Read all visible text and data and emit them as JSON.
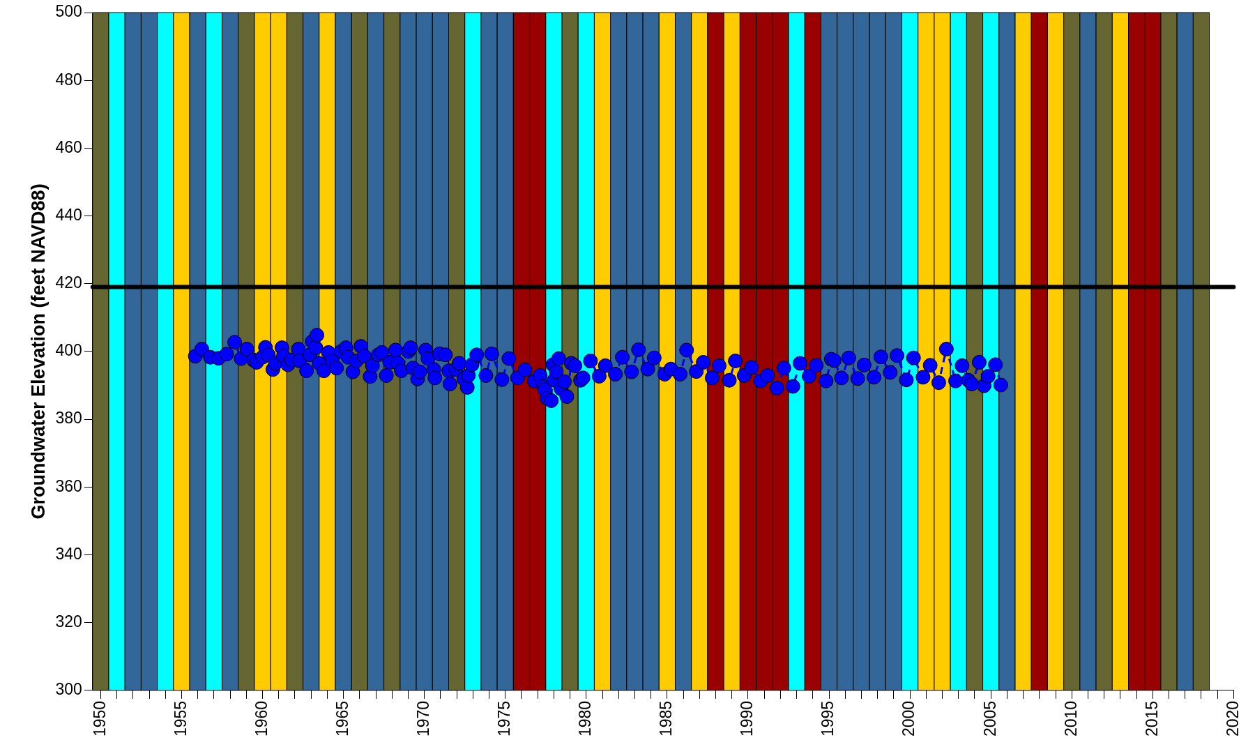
{
  "chart_data": {
    "type": "line",
    "ylabel": "Groundwater Elevation (feet NAVD88)",
    "xlim": [
      1949.5,
      2020
    ],
    "xticks": [
      1950,
      {
        "value": 1951,
        "label": null
      },
      {
        "value": 1952,
        "label": null
      },
      {
        "value": 1953,
        "label": null
      },
      {
        "value": 1954,
        "label": null
      },
      1955,
      {
        "value": 1956,
        "label": null
      },
      {
        "value": 1957,
        "label": null
      },
      {
        "value": 1958,
        "label": null
      },
      {
        "value": 1959,
        "label": null
      },
      1960,
      {
        "value": 1961,
        "label": null
      },
      {
        "value": 1962,
        "label": null
      },
      {
        "value": 1963,
        "label": null
      },
      {
        "value": 1964,
        "label": null
      },
      1965,
      {
        "value": 1966,
        "label": null
      },
      {
        "value": 1967,
        "label": null
      },
      {
        "value": 1968,
        "label": null
      },
      {
        "value": 1969,
        "label": null
      },
      1970,
      {
        "value": 1971,
        "label": null
      },
      {
        "value": 1972,
        "label": null
      },
      {
        "value": 1973,
        "label": null
      },
      {
        "value": 1974,
        "label": null
      },
      1975,
      {
        "value": 1976,
        "label": null
      },
      {
        "value": 1977,
        "label": null
      },
      {
        "value": 1978,
        "label": null
      },
      {
        "value": 1979,
        "label": null
      },
      1980,
      {
        "value": 1981,
        "label": null
      },
      {
        "value": 1982,
        "label": null
      },
      {
        "value": 1983,
        "label": null
      },
      {
        "value": 1984,
        "label": null
      },
      1985,
      {
        "value": 1986,
        "label": null
      },
      {
        "value": 1987,
        "label": null
      },
      {
        "value": 1988,
        "label": null
      },
      {
        "value": 1989,
        "label": null
      },
      1990,
      {
        "value": 1991,
        "label": null
      },
      {
        "value": 1992,
        "label": null
      },
      {
        "value": 1993,
        "label": null
      },
      {
        "value": 1994,
        "label": null
      },
      1995,
      {
        "value": 1996,
        "label": null
      },
      {
        "value": 1997,
        "label": null
      },
      {
        "value": 1998,
        "label": null
      },
      {
        "value": 1999,
        "label": null
      },
      2000,
      {
        "value": 2001,
        "label": null
      },
      {
        "value": 2002,
        "label": null
      },
      {
        "value": 2003,
        "label": null
      },
      {
        "value": 2004,
        "label": null
      },
      2005,
      {
        "value": 2006,
        "label": null
      },
      {
        "value": 2007,
        "label": null
      },
      {
        "value": 2008,
        "label": null
      },
      {
        "value": 2009,
        "label": null
      },
      2010,
      {
        "value": 2011,
        "label": null
      },
      {
        "value": 2012,
        "label": null
      },
      {
        "value": 2013,
        "label": null
      },
      {
        "value": 2014,
        "label": null
      },
      2015,
      {
        "value": 2016,
        "label": null
      },
      {
        "value": 2017,
        "label": null
      },
      {
        "value": 2018,
        "label": null
      },
      {
        "value": 2019,
        "label": null
      },
      2020
    ],
    "ylim": [
      300,
      500
    ],
    "yticks": [
      300,
      320,
      340,
      360,
      380,
      400,
      420,
      440,
      460,
      480,
      500
    ],
    "grid": false,
    "legend": false,
    "x": [
      1955.85,
      1956.25,
      1956.78,
      1957.28,
      1957.78,
      1958.28,
      1958.68,
      1959.03,
      1959.43,
      1959.64,
      1960.0,
      1960.18,
      1960.36,
      1960.64,
      1960.8,
      1961.2,
      1961.29,
      1961.57,
      1961.79,
      1962.22,
      1962.29,
      1962.72,
      1962.93,
      1963.07,
      1963.29,
      1963.36,
      1963.5,
      1963.79,
      1964.07,
      1964.29,
      1964.57,
      1964.86,
      1965.15,
      1965.29,
      1965.58,
      1965.79,
      1966.08,
      1966.29,
      1966.65,
      1966.79,
      1967.15,
      1967.37,
      1967.65,
      1967.86,
      1968.22,
      1968.37,
      1968.58,
      1969.01,
      1969.15,
      1969.29,
      1969.58,
      1969.72,
      1970.08,
      1970.22,
      1970.58,
      1970.65,
      1970.94,
      1971.3,
      1971.51,
      1971.58,
      1971.94,
      1972.15,
      1972.44,
      1972.65,
      1972.72,
      1972.94,
      1973.23,
      1973.8,
      1974.16,
      1974.79,
      1975.22,
      1975.76,
      1976.22,
      1976.79,
      1977.15,
      1977.37,
      1977.44,
      1977.58,
      1977.84,
      1977.94,
      1978.01,
      1978.15,
      1978.3,
      1978.44,
      1978.65,
      1978.8,
      1979.08,
      1979.3,
      1979.65,
      1979.8,
      1980.26,
      1980.8,
      1981.18,
      1981.8,
      1982.23,
      1982.8,
      1983.23,
      1983.8,
      1984.2,
      1984.85,
      1985.23,
      1985.8,
      1986.2,
      1986.8,
      1987.23,
      1987.78,
      1988.21,
      1988.84,
      1989.21,
      1989.76,
      1990.21,
      1990.77,
      1991.2,
      1991.78,
      1992.21,
      1992.77,
      1993.21,
      1993.77,
      1994.21,
      1994.82,
      1995.14,
      1995.32,
      1995.77,
      1996.22,
      1996.77,
      1997.17,
      1997.78,
      1998.2,
      1998.78,
      1999.2,
      1999.78,
      2000.22,
      2000.81,
      2001.25,
      2001.78,
      2002.25,
      2002.82,
      2003.22,
      2003.61,
      2003.82,
      2004.28,
      2004.58,
      2004.83,
      2005.28,
      2005.61
    ],
    "series": [
      {
        "color": "#0000ff",
        "line_style": "dashed",
        "marker": "circle",
        "values": [
          398.6,
          400.7,
          398.3,
          398.0,
          399.2,
          402.7,
          397.9,
          400.7,
          397.5,
          396.8,
          398.3,
          401.2,
          399.0,
          394.7,
          396.5,
          401.1,
          398.6,
          396.1,
          397.5,
          400.7,
          397.2,
          394.3,
          399.0,
          402.9,
          401.1,
          404.8,
          396.5,
          394.3,
          399.7,
          397.2,
          395.1,
          400.0,
          401.1,
          398.3,
          394.0,
          397.2,
          401.5,
          398.6,
          392.6,
          395.8,
          399.0,
          399.7,
          392.9,
          396.8,
          400.4,
          396.5,
          394.3,
          400.0,
          401.1,
          395.1,
          391.9,
          394.0,
          400.4,
          397.9,
          394.7,
          392.2,
          399.3,
          399.0,
          394.3,
          390.4,
          394.7,
          396.5,
          391.9,
          389.4,
          392.9,
          396.1,
          399.0,
          392.9,
          399.3,
          391.7,
          397.9,
          392.2,
          394.6,
          391.3,
          392.9,
          389.7,
          388.7,
          386.2,
          385.5,
          396.1,
          391.5,
          394.0,
          397.9,
          389.0,
          391.1,
          386.7,
          396.5,
          395.8,
          391.5,
          392.2,
          397.2,
          392.7,
          395.8,
          393.3,
          398.3,
          394.0,
          400.5,
          394.8,
          398.1,
          393.3,
          394.8,
          393.3,
          400.4,
          394.1,
          396.8,
          392.2,
          395.8,
          391.5,
          397.2,
          392.9,
          395.3,
          391.3,
          392.9,
          389.2,
          395.1,
          389.7,
          396.5,
          392.7,
          395.9,
          391.3,
          397.7,
          397.3,
          392.2,
          398.1,
          392.0,
          396.0,
          392.4,
          398.4,
          393.8,
          398.8,
          391.6,
          398.1,
          392.4,
          395.9,
          390.8,
          400.7,
          391.3,
          395.8,
          391.5,
          390.4,
          396.8,
          389.9,
          392.7,
          396.1,
          390.1
        ]
      }
    ],
    "ref_lines": [
      {
        "axis": "y",
        "value": 419,
        "color": "#000000"
      }
    ],
    "bands": [
      {
        "axis": "x",
        "from": 1949.5,
        "to": 1950.5,
        "color": "#666633"
      },
      {
        "axis": "x",
        "from": 1950.5,
        "to": 1951.5,
        "color": "#00ffff"
      },
      {
        "axis": "x",
        "from": 1951.5,
        "to": 1952.5,
        "color": "#336699"
      },
      {
        "axis": "x",
        "from": 1952.5,
        "to": 1953.5,
        "color": "#336699"
      },
      {
        "axis": "x",
        "from": 1953.5,
        "to": 1954.5,
        "color": "#00ffff"
      },
      {
        "axis": "x",
        "from": 1954.5,
        "to": 1955.5,
        "color": "#ffcc00"
      },
      {
        "axis": "x",
        "from": 1955.5,
        "to": 1956.5,
        "color": "#336699"
      },
      {
        "axis": "x",
        "from": 1956.5,
        "to": 1957.5,
        "color": "#00ffff"
      },
      {
        "axis": "x",
        "from": 1957.5,
        "to": 1958.5,
        "color": "#336699"
      },
      {
        "axis": "x",
        "from": 1958.5,
        "to": 1959.5,
        "color": "#666633"
      },
      {
        "axis": "x",
        "from": 1959.5,
        "to": 1960.5,
        "color": "#ffcc00"
      },
      {
        "axis": "x",
        "from": 1960.5,
        "to": 1961.5,
        "color": "#ffcc00"
      },
      {
        "axis": "x",
        "from": 1961.5,
        "to": 1962.5,
        "color": "#666633"
      },
      {
        "axis": "x",
        "from": 1962.5,
        "to": 1963.5,
        "color": "#336699"
      },
      {
        "axis": "x",
        "from": 1963.5,
        "to": 1964.5,
        "color": "#ffcc00"
      },
      {
        "axis": "x",
        "from": 1964.5,
        "to": 1965.5,
        "color": "#336699"
      },
      {
        "axis": "x",
        "from": 1965.5,
        "to": 1966.5,
        "color": "#666633"
      },
      {
        "axis": "x",
        "from": 1966.5,
        "to": 1967.5,
        "color": "#336699"
      },
      {
        "axis": "x",
        "from": 1967.5,
        "to": 1968.5,
        "color": "#666633"
      },
      {
        "axis": "x",
        "from": 1968.5,
        "to": 1969.5,
        "color": "#336699"
      },
      {
        "axis": "x",
        "from": 1969.5,
        "to": 1970.5,
        "color": "#336699"
      },
      {
        "axis": "x",
        "from": 1970.5,
        "to": 1971.5,
        "color": "#336699"
      },
      {
        "axis": "x",
        "from": 1971.5,
        "to": 1972.5,
        "color": "#666633"
      },
      {
        "axis": "x",
        "from": 1972.5,
        "to": 1973.5,
        "color": "#00ffff"
      },
      {
        "axis": "x",
        "from": 1973.5,
        "to": 1974.5,
        "color": "#336699"
      },
      {
        "axis": "x",
        "from": 1974.5,
        "to": 1975.5,
        "color": "#336699"
      },
      {
        "axis": "x",
        "from": 1975.5,
        "to": 1976.5,
        "color": "#990000"
      },
      {
        "axis": "x",
        "from": 1976.5,
        "to": 1977.5,
        "color": "#990000"
      },
      {
        "axis": "x",
        "from": 1977.5,
        "to": 1978.5,
        "color": "#00ffff"
      },
      {
        "axis": "x",
        "from": 1978.5,
        "to": 1979.5,
        "color": "#666633"
      },
      {
        "axis": "x",
        "from": 1979.5,
        "to": 1980.5,
        "color": "#00ffff"
      },
      {
        "axis": "x",
        "from": 1980.5,
        "to": 1981.5,
        "color": "#ffcc00"
      },
      {
        "axis": "x",
        "from": 1981.5,
        "to": 1982.5,
        "color": "#336699"
      },
      {
        "axis": "x",
        "from": 1982.5,
        "to": 1983.5,
        "color": "#336699"
      },
      {
        "axis": "x",
        "from": 1983.5,
        "to": 1984.5,
        "color": "#336699"
      },
      {
        "axis": "x",
        "from": 1984.5,
        "to": 1985.5,
        "color": "#ffcc00"
      },
      {
        "axis": "x",
        "from": 1985.5,
        "to": 1986.5,
        "color": "#336699"
      },
      {
        "axis": "x",
        "from": 1986.5,
        "to": 1987.5,
        "color": "#ffcc00"
      },
      {
        "axis": "x",
        "from": 1987.5,
        "to": 1988.5,
        "color": "#990000"
      },
      {
        "axis": "x",
        "from": 1988.5,
        "to": 1989.5,
        "color": "#ffcc00"
      },
      {
        "axis": "x",
        "from": 1989.5,
        "to": 1990.5,
        "color": "#990000"
      },
      {
        "axis": "x",
        "from": 1990.5,
        "to": 1991.5,
        "color": "#990000"
      },
      {
        "axis": "x",
        "from": 1991.5,
        "to": 1992.5,
        "color": "#990000"
      },
      {
        "axis": "x",
        "from": 1992.5,
        "to": 1993.5,
        "color": "#00ffff"
      },
      {
        "axis": "x",
        "from": 1993.5,
        "to": 1994.5,
        "color": "#990000"
      },
      {
        "axis": "x",
        "from": 1994.5,
        "to": 1995.5,
        "color": "#336699"
      },
      {
        "axis": "x",
        "from": 1995.5,
        "to": 1996.5,
        "color": "#336699"
      },
      {
        "axis": "x",
        "from": 1996.5,
        "to": 1997.5,
        "color": "#336699"
      },
      {
        "axis": "x",
        "from": 1997.5,
        "to": 1998.5,
        "color": "#336699"
      },
      {
        "axis": "x",
        "from": 1998.5,
        "to": 1999.5,
        "color": "#336699"
      },
      {
        "axis": "x",
        "from": 1999.5,
        "to": 2000.5,
        "color": "#00ffff"
      },
      {
        "axis": "x",
        "from": 2000.5,
        "to": 2001.5,
        "color": "#ffcc00"
      },
      {
        "axis": "x",
        "from": 2001.5,
        "to": 2002.5,
        "color": "#ffcc00"
      },
      {
        "axis": "x",
        "from": 2002.5,
        "to": 2003.5,
        "color": "#00ffff"
      },
      {
        "axis": "x",
        "from": 2003.5,
        "to": 2004.5,
        "color": "#666633"
      },
      {
        "axis": "x",
        "from": 2004.5,
        "to": 2005.5,
        "color": "#00ffff"
      },
      {
        "axis": "x",
        "from": 2005.5,
        "to": 2006.5,
        "color": "#336699"
      },
      {
        "axis": "x",
        "from": 2006.5,
        "to": 2007.5,
        "color": "#ffcc00"
      },
      {
        "axis": "x",
        "from": 2007.5,
        "to": 2008.5,
        "color": "#990000"
      },
      {
        "axis": "x",
        "from": 2008.5,
        "to": 2009.5,
        "color": "#ffcc00"
      },
      {
        "axis": "x",
        "from": 2009.5,
        "to": 2010.5,
        "color": "#666633"
      },
      {
        "axis": "x",
        "from": 2010.5,
        "to": 2011.5,
        "color": "#336699"
      },
      {
        "axis": "x",
        "from": 2011.5,
        "to": 2012.5,
        "color": "#666633"
      },
      {
        "axis": "x",
        "from": 2012.5,
        "to": 2013.5,
        "color": "#ffcc00"
      },
      {
        "axis": "x",
        "from": 2013.5,
        "to": 2014.5,
        "color": "#990000"
      },
      {
        "axis": "x",
        "from": 2014.5,
        "to": 2015.5,
        "color": "#990000"
      },
      {
        "axis": "x",
        "from": 2015.5,
        "to": 2016.5,
        "color": "#666633"
      },
      {
        "axis": "x",
        "from": 2016.5,
        "to": 2017.5,
        "color": "#336699"
      },
      {
        "axis": "x",
        "from": 2017.5,
        "to": 2018.5,
        "color": "#666633"
      }
    ]
  }
}
